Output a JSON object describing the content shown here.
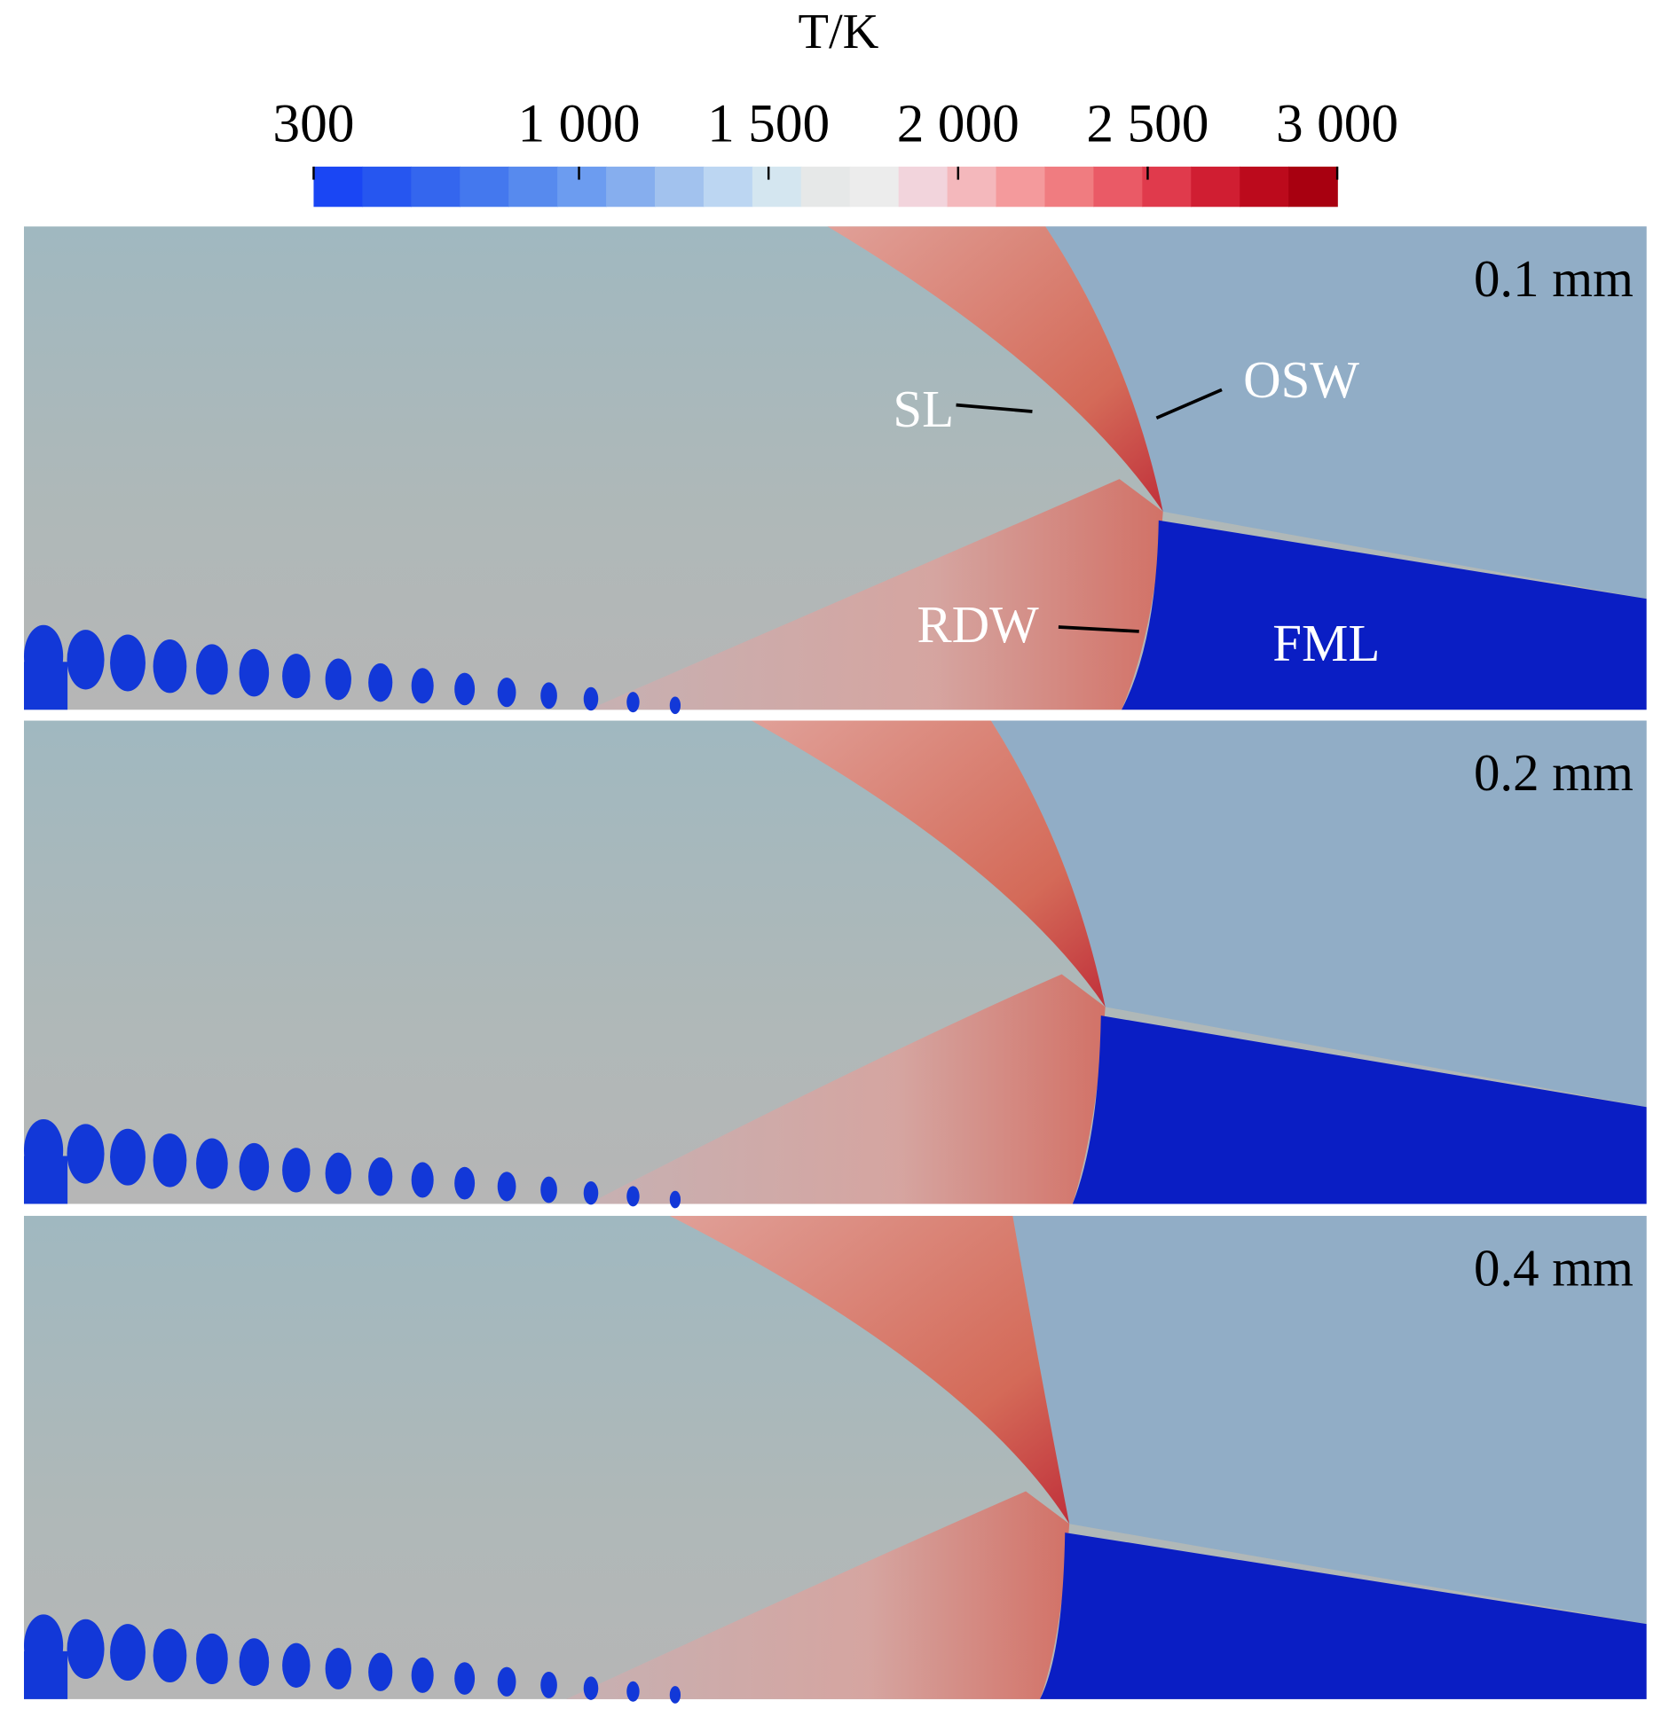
{
  "chart_data": {
    "type": "colormap",
    "title": "T/K",
    "lim": [
      300,
      3000
    ],
    "ticks": [
      300,
      {
        "value": 1000,
        "label": "1 000"
      },
      {
        "value": 1500,
        "label": "1 500"
      },
      {
        "value": 2000,
        "label": "2 000"
      },
      {
        "value": 2500,
        "label": "2 500"
      },
      {
        "value": 3000,
        "label": "3 000"
      }
    ],
    "colors": [
      "#1a46f4",
      "#2656f0",
      "#3466ee",
      "#4478ee",
      "#578aee",
      "#6c9cf0",
      "#86aeee",
      "#a2c2ee",
      "#bcd6f2",
      "#d4e6f0",
      "#e6e8e8",
      "#ececec",
      "#f2d4dc",
      "#f4b8bc",
      "#f49a9c",
      "#f07c80",
      "#ea5a66",
      "#e03a4c",
      "#d01e32",
      "#bc0a1c",
      "#a80010"
    ],
    "panels": [
      {
        "label": "0.1 mm",
        "annotations": [
          "SL",
          "OSW",
          "RDW",
          "FML"
        ]
      },
      {
        "label": "0.2 mm"
      },
      {
        "label": "0.4 mm"
      }
    ]
  }
}
